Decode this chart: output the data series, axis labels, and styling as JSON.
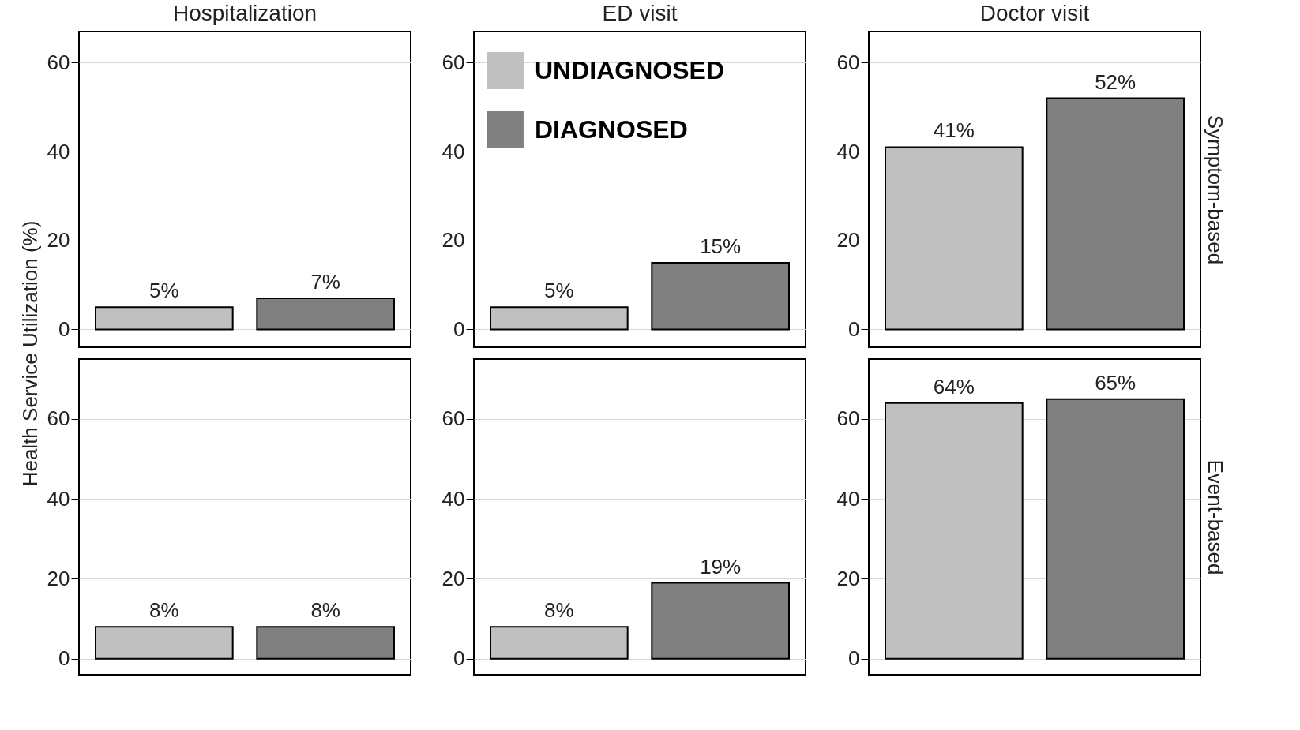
{
  "chart_data": [
    {
      "type": "bar",
      "title": "Hospitalization",
      "ylabel": "Health Service Utilization (%)",
      "categories": [
        null
      ],
      "series": [
        {
          "color": "#c0c0c0",
          "values": [
            5
          ],
          "value_labels": [
            "5%"
          ]
        },
        {
          "color": "#808080",
          "values": [
            7
          ],
          "value_labels": [
            "7%"
          ]
        }
      ],
      "ylim": [
        -4,
        67
      ],
      "yticks": [
        0,
        20,
        40,
        60
      ],
      "grid": "y",
      "tick_labels": "y"
    },
    {
      "type": "bar",
      "title": "ED visit",
      "categories": [
        null
      ],
      "series": [
        {
          "name": "UNDIAGNOSED",
          "color": "#c0c0c0",
          "values": [
            5
          ],
          "value_labels": [
            "5%"
          ]
        },
        {
          "name": "DIAGNOSED",
          "color": "#808080",
          "values": [
            15
          ],
          "value_labels": [
            "15%"
          ]
        }
      ],
      "ylim": [
        -4,
        67
      ],
      "yticks": [
        0,
        20,
        40,
        60
      ],
      "grid": "y",
      "tick_labels": "y",
      "legend": "top"
    },
    {
      "type": "bar",
      "title": "Doctor visit",
      "y2label": "Symptom-based",
      "categories": [
        null
      ],
      "series": [
        {
          "color": "#c0c0c0",
          "values": [
            41
          ],
          "value_labels": [
            "41%"
          ]
        },
        {
          "color": "#808080",
          "values": [
            52
          ],
          "value_labels": [
            "52%"
          ]
        }
      ],
      "ylim": [
        -4,
        67
      ],
      "yticks": [
        0,
        20,
        40,
        60
      ],
      "grid": "y",
      "tick_labels": "y"
    },
    {
      "type": "bar",
      "categories": [
        null
      ],
      "series": [
        {
          "color": "#c0c0c0",
          "values": [
            8
          ],
          "value_labels": [
            "8%"
          ]
        },
        {
          "color": "#808080",
          "values": [
            8
          ],
          "value_labels": [
            "8%"
          ]
        }
      ],
      "ylim": [
        -4,
        75
      ],
      "yticks": [
        0,
        20,
        40,
        60
      ],
      "grid": "y",
      "tick_labels": "y"
    },
    {
      "type": "bar",
      "categories": [
        null
      ],
      "series": [
        {
          "color": "#c0c0c0",
          "values": [
            8
          ],
          "value_labels": [
            "8%"
          ]
        },
        {
          "color": "#808080",
          "values": [
            19
          ],
          "value_labels": [
            "19%"
          ]
        }
      ],
      "ylim": [
        -4,
        75
      ],
      "yticks": [
        0,
        20,
        40,
        60
      ],
      "grid": "y",
      "tick_labels": "y"
    },
    {
      "type": "bar",
      "y2label": "Event-based",
      "categories": [
        null
      ],
      "series": [
        {
          "color": "#c0c0c0",
          "values": [
            64
          ],
          "value_labels": [
            "64%"
          ]
        },
        {
          "color": "#808080",
          "values": [
            65
          ],
          "value_labels": [
            "65%"
          ]
        }
      ],
      "ylim": [
        -4,
        75
      ],
      "yticks": [
        0,
        20,
        40,
        60
      ],
      "grid": "y",
      "tick_labels": "y"
    }
  ]
}
